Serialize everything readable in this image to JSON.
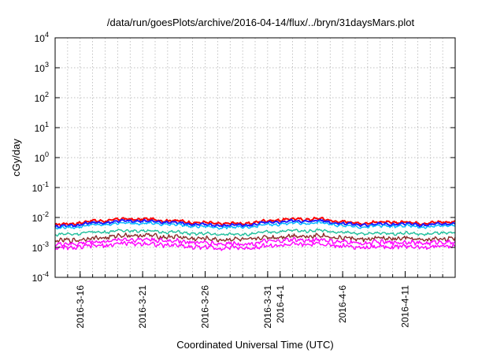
{
  "chart_data": {
    "type": "line",
    "title": "/data/run/goesPlots/archive/2016-04-14/flux/../bryn/31daysMars.plot",
    "xlabel": "Coordinated Universal Time (UTC)",
    "ylabel": "cGy/day",
    "yscale": "log",
    "ylim": [
      0.0001,
      10000
    ],
    "y_ticks": [
      {
        "base": "10",
        "exp": "-4"
      },
      {
        "base": "10",
        "exp": "-3"
      },
      {
        "base": "10",
        "exp": "-2"
      },
      {
        "base": "10",
        "exp": "-1"
      },
      {
        "base": "10",
        "exp": "0"
      },
      {
        "base": "10",
        "exp": "1"
      },
      {
        "base": "10",
        "exp": "2"
      },
      {
        "base": "10",
        "exp": "3"
      },
      {
        "base": "10",
        "exp": "4"
      }
    ],
    "xlim": [
      "2016-03-14",
      "2016-04-15"
    ],
    "x_tick_labels": [
      "2016-3-16",
      "2016-3-21",
      "2016-3-26",
      "2016-3-31",
      "2016-4-1",
      "2016-4-6",
      "2016-4-11"
    ],
    "x_tick_dates": [
      "2016-03-16",
      "2016-03-21",
      "2016-03-26",
      "2016-03-31",
      "2016-04-01",
      "2016-04-06",
      "2016-04-11"
    ],
    "grid": true,
    "legend": "none",
    "series": [
      {
        "color": "#ff0000",
        "dates": [
          "2016-03-14",
          "2016-03-17",
          "2016-03-20",
          "2016-03-23",
          "2016-03-26",
          "2016-03-29",
          "2016-04-01",
          "2016-04-04",
          "2016-04-07",
          "2016-04-10",
          "2016-04-13",
          "2016-04-15"
        ],
        "values": [
          0.0055,
          0.0075,
          0.009,
          0.008,
          0.0065,
          0.0062,
          0.0085,
          0.009,
          0.0065,
          0.007,
          0.0065,
          0.0075
        ]
      },
      {
        "color": "#1c1cff",
        "dates": [
          "2016-03-14",
          "2016-03-17",
          "2016-03-20",
          "2016-03-23",
          "2016-03-26",
          "2016-03-29",
          "2016-04-01",
          "2016-04-04",
          "2016-04-07",
          "2016-04-10",
          "2016-04-13",
          "2016-04-15"
        ],
        "values": [
          0.0048,
          0.0065,
          0.0078,
          0.007,
          0.0056,
          0.0054,
          0.0073,
          0.0078,
          0.0057,
          0.006,
          0.0056,
          0.0065
        ]
      },
      {
        "color": "#00b7ff",
        "dates": [
          "2016-03-14",
          "2016-03-17",
          "2016-03-20",
          "2016-03-23",
          "2016-03-26",
          "2016-03-29",
          "2016-04-01",
          "2016-04-04",
          "2016-04-07",
          "2016-04-10",
          "2016-04-13",
          "2016-04-15"
        ],
        "values": [
          0.0042,
          0.0055,
          0.0066,
          0.006,
          0.0048,
          0.0046,
          0.0062,
          0.0066,
          0.0049,
          0.0052,
          0.0048,
          0.0056
        ]
      },
      {
        "color": "#1fbf9c",
        "dates": [
          "2016-03-14",
          "2016-03-17",
          "2016-03-20",
          "2016-03-23",
          "2016-03-26",
          "2016-03-29",
          "2016-04-01",
          "2016-04-04",
          "2016-04-07",
          "2016-04-10",
          "2016-04-13",
          "2016-04-15"
        ],
        "values": [
          0.0026,
          0.0032,
          0.0037,
          0.0033,
          0.0028,
          0.0027,
          0.0035,
          0.0037,
          0.0029,
          0.003,
          0.0028,
          0.0032
        ]
      },
      {
        "color": "#8b2a2a",
        "dates": [
          "2016-03-14",
          "2016-03-17",
          "2016-03-20",
          "2016-03-23",
          "2016-03-26",
          "2016-03-29",
          "2016-04-01",
          "2016-04-04",
          "2016-04-07",
          "2016-04-10",
          "2016-04-13",
          "2016-04-15"
        ],
        "values": [
          0.0016,
          0.002,
          0.0026,
          0.0023,
          0.0019,
          0.0018,
          0.0023,
          0.0025,
          0.0019,
          0.002,
          0.0018,
          0.0021
        ]
      },
      {
        "color": "#ff00ff",
        "dates": [
          "2016-03-14",
          "2016-03-17",
          "2016-03-20",
          "2016-03-23",
          "2016-03-26",
          "2016-03-29",
          "2016-04-01",
          "2016-04-04",
          "2016-04-07",
          "2016-04-10",
          "2016-04-13",
          "2016-04-15"
        ],
        "values": [
          0.0012,
          0.0015,
          0.0019,
          0.0017,
          0.0014,
          0.0013,
          0.0017,
          0.0018,
          0.0014,
          0.0015,
          0.0014,
          0.0016
        ]
      },
      {
        "color": "#ff00ff",
        "dates": [
          "2016-03-14",
          "2016-03-17",
          "2016-03-20",
          "2016-03-23",
          "2016-03-26",
          "2016-03-29",
          "2016-04-01",
          "2016-04-04",
          "2016-04-07",
          "2016-04-10",
          "2016-04-13",
          "2016-04-15"
        ],
        "values": [
          0.0009,
          0.0011,
          0.0014,
          0.0012,
          0.001,
          0.00095,
          0.0012,
          0.0013,
          0.001,
          0.0011,
          0.001,
          0.0012
        ]
      }
    ]
  }
}
